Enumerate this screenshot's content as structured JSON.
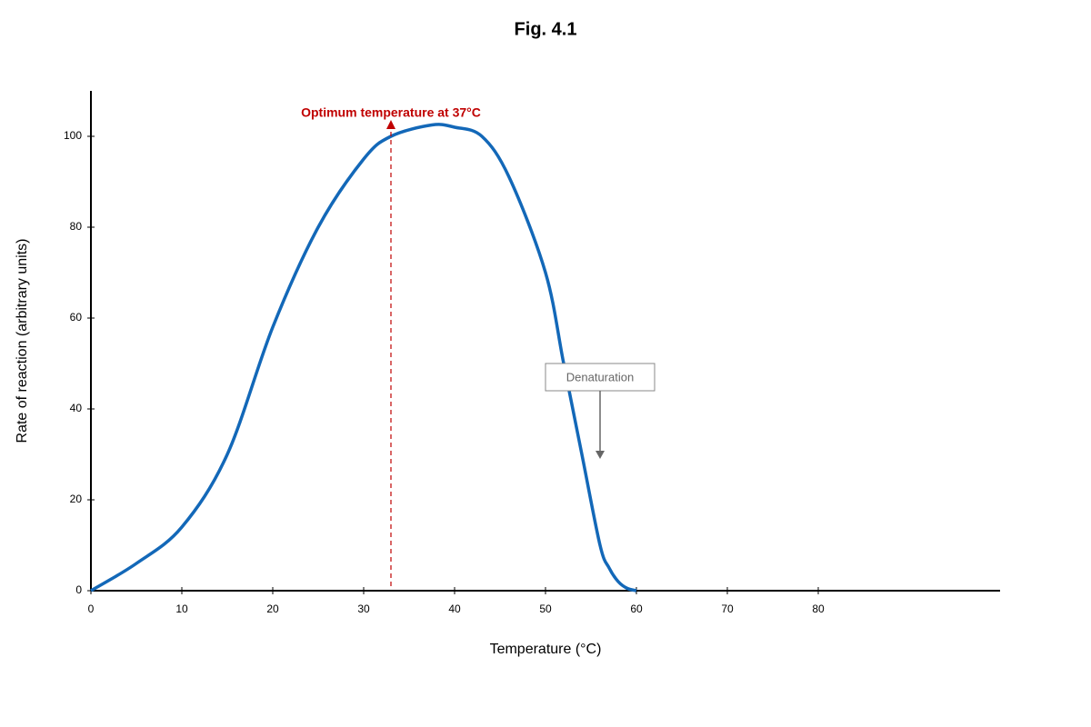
{
  "chart_data": {
    "type": "line",
    "title": "Fig. 4.1",
    "x_label": "Temperature (°C)",
    "y_label": "Rate of reaction (arbitrary units)",
    "x": [
      0,
      5,
      10,
      15,
      20,
      25,
      30,
      33,
      37.5,
      40,
      43,
      46,
      50,
      52,
      54,
      56,
      57,
      58,
      59,
      60
    ],
    "series": [
      {
        "name": "Rate of reaction",
        "color": "#1368b8",
        "values": [
          0,
          6,
          14,
          30,
          58,
          80,
          95,
          100,
          102.5,
          102,
          100,
          91,
          70,
          50,
          30,
          10,
          5,
          2,
          0.5,
          0
        ]
      }
    ],
    "xlim": [
      0,
      100
    ],
    "xticks": [
      0,
      10,
      20,
      30,
      40,
      50,
      60,
      70,
      80
    ],
    "ylim": [
      0,
      110
    ],
    "yticks": [
      0,
      20,
      40,
      60,
      80,
      100
    ],
    "grid": false,
    "annotations": [
      {
        "text": "Optimum temperature at 37°C",
        "x": 33,
        "y": 103,
        "color": "#c00000"
      },
      {
        "text": "Denaturation",
        "x": 56,
        "y": 47,
        "arrow_to": 29,
        "color": "#666666"
      }
    ]
  }
}
